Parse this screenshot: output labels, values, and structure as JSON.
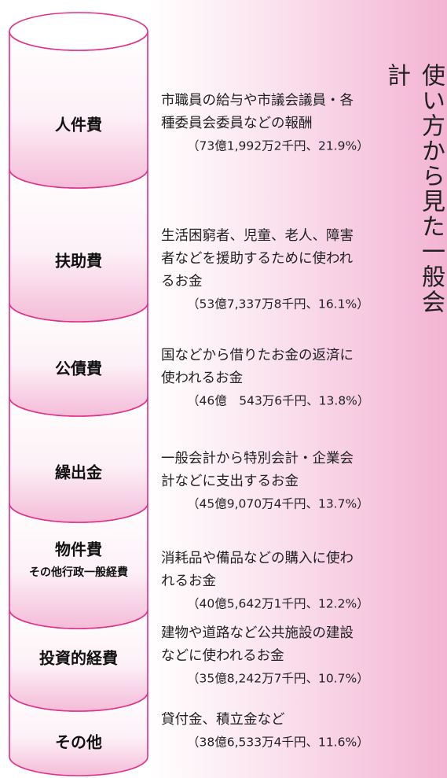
{
  "title": "使い方から見た一般会計",
  "items": [
    {
      "label": "人件費",
      "description": [
        "市職員の給与や市議会議員・各",
        "種委員会委員などの報酬"
      ],
      "amount": "（73億1,992万2千円、21.9%）"
    },
    {
      "label": "扶助費",
      "description": [
        "生活困窮者、児童、老人、障害",
        "者などを援助するために使われ",
        "るお金"
      ],
      "amount": "（53億7,337万8千円、16.1%）"
    },
    {
      "label": "公債費",
      "description": [
        "国などから借りたお金の返済に",
        "使われるお金"
      ],
      "amount": "（46億　543万6千円、13.8%）"
    },
    {
      "label": "繰出金",
      "description": [
        "一般会計から特別会計・企業会",
        "計などに支出するお金"
      ],
      "amount": "（45億9,070万4千円、13.7%）"
    },
    {
      "label": "物件費",
      "sublabel": "その他行政一般経費",
      "description": [
        "消耗品や備品などの購入に使わ",
        "れるお金"
      ],
      "amount": "（40億5,642万1千円、12.2%）"
    },
    {
      "label": "投資的経費",
      "description": [
        "建物や道路など公共施設の建設",
        "などに使われるお金"
      ],
      "amount": "（35億8,242万7千円、10.7%）"
    },
    {
      "label": "その他",
      "description": [
        "貸付金、積立金など"
      ],
      "amount": "（38億6,533万4千円、11.6%）"
    }
  ]
}
